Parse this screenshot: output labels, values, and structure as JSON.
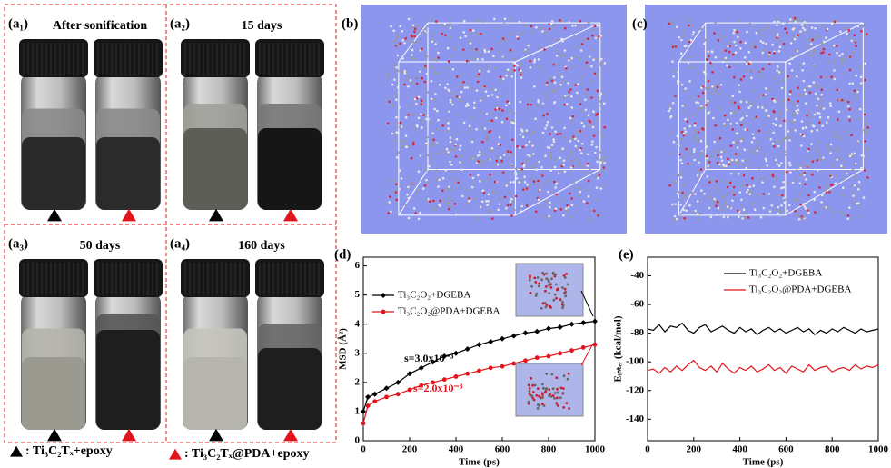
{
  "panels": [
    {
      "label": "(a₁)",
      "title": "After sonification"
    },
    {
      "label": "(a₂)",
      "title": "15 days"
    },
    {
      "label": "(a₃)",
      "title": "50 days"
    },
    {
      "label": "(a₄)",
      "title": "160 days"
    },
    {
      "label": "(b)"
    },
    {
      "label": "(c)"
    }
  ],
  "legend": [
    {
      "text": ": Ti₃C₂Tₓ+epoxy",
      "color": "#000000"
    },
    {
      "text": ": Ti₃C₂Tₓ@PDA+epoxy",
      "color": "#e0141a"
    }
  ],
  "chart_data": [
    {
      "type": "line",
      "label": "(d)",
      "x_label": "Time (ps)",
      "y_label": "MSD (Å²)",
      "xlim": [
        0,
        1000
      ],
      "xticks": [
        0,
        200,
        400,
        600,
        800,
        1000
      ],
      "ylim": [
        0,
        6.3
      ],
      "yticks": [
        0,
        1,
        2,
        3,
        4,
        5,
        6
      ],
      "legend": "upper left",
      "x": [
        0,
        20,
        50,
        100,
        150,
        200,
        250,
        300,
        350,
        400,
        450,
        500,
        550,
        600,
        650,
        700,
        750,
        800,
        850,
        900,
        950,
        1000
      ],
      "series": [
        {
          "name": "Ti₃C₂O₂+DGEBA",
          "color": "#000000",
          "marker": "diamond",
          "values": [
            1.0,
            1.5,
            1.6,
            1.8,
            2.0,
            2.3,
            2.5,
            2.7,
            2.9,
            3.0,
            3.15,
            3.3,
            3.4,
            3.5,
            3.6,
            3.7,
            3.75,
            3.85,
            3.9,
            4.0,
            4.05,
            4.1
          ]
        },
        {
          "name": "Ti₃C₂O₂@PDA+DGEBA",
          "color": "#e0141a",
          "marker": "circle",
          "values": [
            0.6,
            1.2,
            1.35,
            1.5,
            1.6,
            1.75,
            1.9,
            2.0,
            2.1,
            2.2,
            2.3,
            2.4,
            2.5,
            2.55,
            2.65,
            2.75,
            2.85,
            2.9,
            3.0,
            3.1,
            3.2,
            3.3
          ]
        }
      ],
      "annotations": [
        {
          "text": "s=3.0x10⁻³",
          "color": "#000000"
        },
        {
          "text": "s=2.0x10⁻³",
          "color": "#e0141a"
        }
      ]
    },
    {
      "type": "line",
      "label": "(e)",
      "x_label": "Time (ps)",
      "y_label": "Eᵢₙₜₑᵣ (kcal/mol)",
      "xlim": [
        0,
        1000
      ],
      "xticks": [
        0,
        200,
        400,
        600,
        800,
        1000
      ],
      "ylim": [
        -155,
        -27
      ],
      "yticks": [
        -140,
        -120,
        -100,
        -80,
        -60,
        -40
      ],
      "legend": "upper right",
      "x": [
        0,
        25,
        50,
        75,
        100,
        125,
        150,
        175,
        200,
        225,
        250,
        275,
        300,
        325,
        350,
        375,
        400,
        425,
        450,
        475,
        500,
        525,
        550,
        575,
        600,
        625,
        650,
        675,
        700,
        725,
        750,
        775,
        800,
        825,
        850,
        875,
        900,
        925,
        950,
        975,
        1000
      ],
      "series": [
        {
          "name": "Ti₃C₂O₂+DGEBA",
          "color": "#000000",
          "values": [
            -77,
            -78,
            -74,
            -79,
            -75,
            -76,
            -73,
            -78,
            -80,
            -76,
            -74,
            -79,
            -77,
            -75,
            -78,
            -80,
            -76,
            -79,
            -77,
            -81,
            -78,
            -76,
            -79,
            -77,
            -80,
            -78,
            -76,
            -79,
            -77,
            -81,
            -78,
            -80,
            -77,
            -79,
            -76,
            -78,
            -80,
            -77,
            -79,
            -78,
            -77
          ]
        },
        {
          "name": "Ti₃C₂O₂@PDA+DGEBA",
          "color": "#e0141a",
          "values": [
            -106,
            -105,
            -108,
            -104,
            -107,
            -103,
            -106,
            -102,
            -99,
            -104,
            -106,
            -103,
            -107,
            -101,
            -105,
            -108,
            -104,
            -106,
            -103,
            -107,
            -105,
            -102,
            -106,
            -104,
            -108,
            -103,
            -105,
            -107,
            -102,
            -106,
            -104,
            -103,
            -107,
            -105,
            -104,
            -106,
            -102,
            -105,
            -103,
            -104,
            -102
          ]
        }
      ]
    }
  ]
}
